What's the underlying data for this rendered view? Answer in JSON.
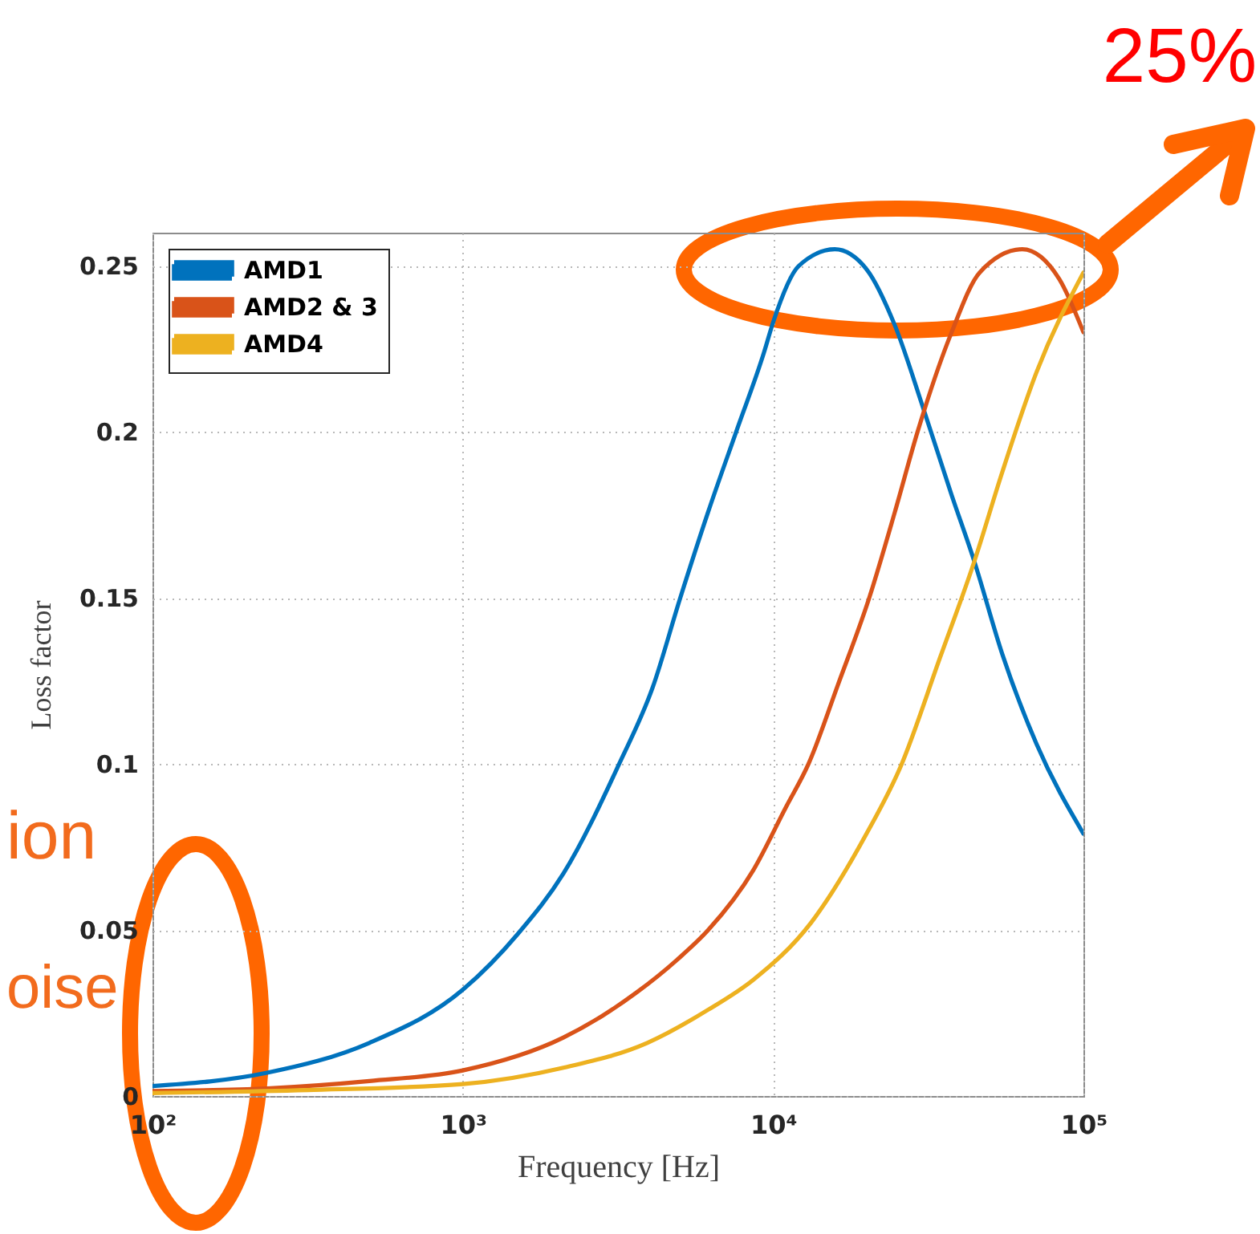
{
  "chart_data": {
    "type": "line",
    "xlabel": "Frequency [Hz]",
    "ylabel": "Loss factor",
    "annotations": [
      "25%",
      "ion",
      "oise"
    ],
    "series": [
      {
        "name": "AMD1",
        "color": "#0072bd",
        "x": [
          100,
          234,
          500,
          1000,
          1510,
          2110,
          3190,
          4090,
          5020,
          6180,
          7600,
          9350,
          10000,
          12100,
          15800,
          20000,
          24700,
          30500,
          37600,
          44500,
          54800,
          70600,
          100000
        ],
        "values": [
          0.003,
          0.007,
          0.016,
          0.032,
          0.049,
          0.067,
          0.1,
          0.123,
          0.15,
          0.176,
          0.2,
          0.224,
          0.233,
          0.25,
          0.255,
          0.249,
          0.232,
          0.207,
          0.181,
          0.161,
          0.133,
          0.106,
          0.079
        ]
      },
      {
        "name": "AMD2 & 3",
        "color": "#d95319",
        "x": [
          100,
          234,
          500,
          1000,
          2110,
          2800,
          3610,
          4900,
          6180,
          8630,
          11000,
          13000,
          16200,
          20400,
          24700,
          29200,
          37600,
          46300,
          63500,
          83600,
          100000
        ],
        "values": [
          0.0015,
          0.0023,
          0.0045,
          0.0077,
          0.0176,
          0.024,
          0.031,
          0.041,
          0.05,
          0.068,
          0.087,
          0.1,
          0.124,
          0.15,
          0.176,
          0.2,
          0.23,
          0.248,
          0.255,
          0.246,
          0.23
        ]
      },
      {
        "name": "AMD4",
        "color": "#edb120",
        "x": [
          100,
          316,
          1000,
          2110,
          3930,
          6180,
          8630,
          13200,
          20000,
          25700,
          34500,
          44500,
          54800,
          70600,
          100000
        ],
        "values": [
          0.0009,
          0.0018,
          0.0036,
          0.0085,
          0.016,
          0.026,
          0.035,
          0.052,
          0.079,
          0.099,
          0.132,
          0.161,
          0.188,
          0.218,
          0.248
        ]
      }
    ],
    "xlim": [
      100,
      100000
    ],
    "ylim": [
      0,
      0.26
    ],
    "xticks": [
      {
        "value": 100,
        "label": "10²"
      },
      {
        "value": 1000,
        "label": "10³"
      },
      {
        "value": 10000,
        "label": "10⁴"
      },
      {
        "value": 100000,
        "label": "10⁵"
      }
    ],
    "yticks": [
      0,
      0.05,
      0.1,
      0.15,
      0.2,
      0.25
    ],
    "log": "x",
    "grid": true,
    "legend": "top left"
  }
}
